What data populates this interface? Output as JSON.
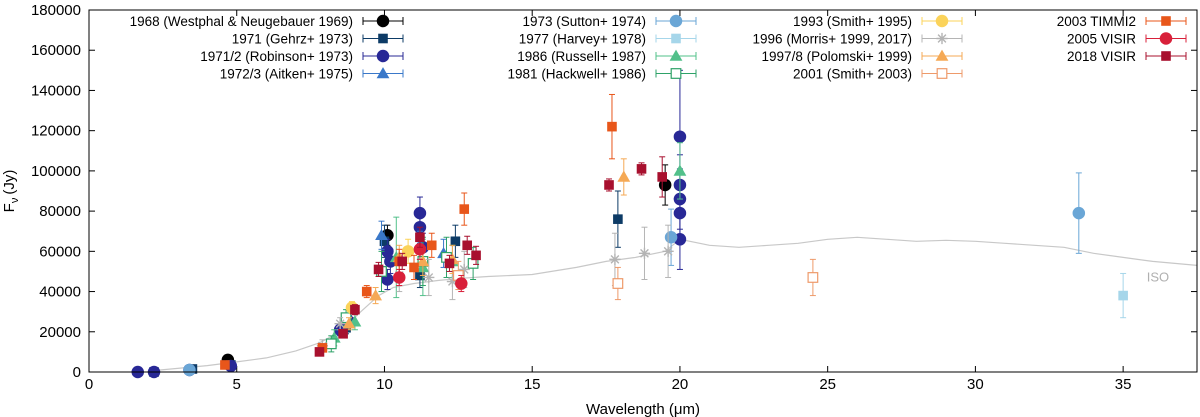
{
  "chart_data": {
    "type": "scatter",
    "xlabel": "Wavelength (μm)",
    "ylabel_main": "F",
    "ylabel_sub": "ν",
    "ylabel_unit": "(Jy)",
    "xlim": [
      0,
      37.5
    ],
    "ylim": [
      0,
      180000
    ],
    "xticks": [
      0,
      5,
      10,
      15,
      20,
      25,
      30,
      35
    ],
    "yticks": [
      0,
      20000,
      40000,
      60000,
      80000,
      100000,
      120000,
      140000,
      160000,
      180000
    ],
    "legend_placement": "top",
    "reference_curve": {
      "name": "ISO",
      "color": "#c8c8c8",
      "x": [
        2.4,
        3.0,
        4.0,
        5.0,
        6.0,
        7.0,
        7.8,
        8.5,
        9.2,
        9.8,
        10.3,
        11.0,
        11.8,
        12.5,
        13.5,
        15.0,
        16.5,
        17.5,
        18.5,
        19.5,
        20.0,
        21.0,
        22.0,
        23.0,
        24.0,
        25.0,
        26.0,
        27.0,
        28.0,
        29.0,
        30.0,
        31.0,
        32.0,
        33.0,
        34.0,
        35.0,
        36.0,
        37.5
      ],
      "y": [
        1000,
        1800,
        3200,
        5000,
        7000,
        10500,
        14500,
        20000,
        30000,
        38000,
        42000,
        44000,
        45500,
        46500,
        47500,
        48500,
        52000,
        55000,
        57000,
        60000,
        66000,
        63000,
        62000,
        63000,
        64000,
        66000,
        67000,
        66000,
        65000,
        65500,
        65000,
        64000,
        63000,
        62000,
        59000,
        57000,
        55000,
        53000
      ]
    },
    "series": [
      {
        "name": "1968 (Westphal & Neugebauer 1969)",
        "color": "#000000",
        "marker": "circle",
        "points": [
          [
            4.7,
            6000,
            1500
          ],
          [
            10.1,
            68000,
            5000
          ],
          [
            19.5,
            93000,
            10000
          ]
        ]
      },
      {
        "name": "1971 (Gehrz+ 1973)",
        "color": "#0d3b66",
        "marker": "square",
        "points": [
          [
            2.2,
            0,
            0
          ],
          [
            3.5,
            1500,
            500
          ],
          [
            4.8,
            3500,
            700
          ],
          [
            8.7,
            22000,
            3000
          ],
          [
            10.0,
            65000,
            8000
          ],
          [
            11.2,
            48000,
            6000
          ],
          [
            12.4,
            65000,
            8000
          ],
          [
            17.9,
            76000,
            14000
          ]
        ]
      },
      {
        "name": "1971/2 (Robinson+ 1973)",
        "color": "#282896",
        "marker": "circle",
        "points": [
          [
            1.65,
            0,
            0
          ],
          [
            2.2,
            0,
            0
          ],
          [
            3.4,
            1000,
            400
          ],
          [
            4.8,
            3000,
            600
          ],
          [
            8.5,
            21000,
            3000
          ],
          [
            8.8,
            25000,
            3000
          ],
          [
            10.1,
            60000,
            6000
          ],
          [
            10.2,
            55000,
            6000
          ],
          [
            10.1,
            46000,
            5000
          ],
          [
            11.2,
            79000,
            8000
          ],
          [
            11.2,
            72000,
            8000
          ],
          [
            11.3,
            62000,
            7000
          ],
          [
            20.0,
            117000,
            33000
          ],
          [
            20.0,
            93000,
            15000
          ],
          [
            20.0,
            86000,
            15000
          ],
          [
            20.0,
            79000,
            15000
          ],
          [
            20.0,
            66000,
            15000
          ]
        ]
      },
      {
        "name": "1972/3 (Aitken+ 1975)",
        "color": "#3a78c9",
        "marker": "triangle",
        "points": [
          [
            9.9,
            68000,
            7000
          ],
          [
            11.2,
            63000,
            7000
          ],
          [
            12.0,
            59000,
            7000
          ]
        ]
      },
      {
        "name": "1973 (Sutton+ 1974)",
        "color": "#6aa6d6",
        "marker": "circle",
        "points": [
          [
            3.4,
            1000,
            300
          ],
          [
            19.7,
            67000,
            14000
          ],
          [
            33.5,
            79000,
            20000
          ]
        ]
      },
      {
        "name": "1977 (Harvey+ 1978)",
        "color": "#a6d6ea",
        "marker": "square",
        "points": [
          [
            35.0,
            38000,
            11000
          ]
        ]
      },
      {
        "name": "1986 (Russell+ 1987)",
        "color": "#52c08a",
        "marker": "triangle",
        "points": [
          [
            8.3,
            17000,
            4000
          ],
          [
            9.0,
            25000,
            4000
          ],
          [
            10.4,
            57000,
            20000
          ],
          [
            11.3,
            52000,
            14000
          ],
          [
            12.3,
            55000,
            8000
          ],
          [
            20.0,
            100000,
            14000
          ]
        ]
      },
      {
        "name": "1981 (Hackwell+ 1986)",
        "color": "#2ea268",
        "marker": "open-square",
        "points": [
          [
            8.2,
            14000,
            4000
          ],
          [
            8.7,
            27000,
            4000
          ],
          [
            9.9,
            50000,
            10000
          ],
          [
            11.3,
            55000,
            12000
          ],
          [
            12.1,
            57000,
            10000
          ],
          [
            13.0,
            54000,
            8000
          ]
        ]
      },
      {
        "name": "1993 (Smith+ 1995)",
        "color": "#fbd35a",
        "marker": "circle",
        "points": [
          [
            8.9,
            32000,
            3000
          ],
          [
            10.8,
            60000,
            6000
          ]
        ]
      },
      {
        "name": "1996 (Morris+ 1999, 2017)",
        "color": "#b4b4b4",
        "marker": "star",
        "points": [
          [
            7.9,
            13000,
            3000
          ],
          [
            8.5,
            24000,
            3000
          ],
          [
            10.5,
            48000,
            8000
          ],
          [
            11.5,
            47000,
            9000
          ],
          [
            12.3,
            45000,
            9000
          ],
          [
            12.7,
            51000,
            9000
          ],
          [
            17.8,
            56000,
            13000
          ],
          [
            18.8,
            59000,
            13000
          ],
          [
            19.6,
            60000,
            13000
          ]
        ]
      },
      {
        "name": "1997/8 (Polomski+ 1999)",
        "color": "#f5a955",
        "marker": "triangle",
        "points": [
          [
            8.8,
            24000,
            3000
          ],
          [
            9.7,
            38000,
            4000
          ],
          [
            10.5,
            57000,
            6000
          ],
          [
            11.3,
            55000,
            7000
          ],
          [
            12.3,
            56000,
            7000
          ],
          [
            18.1,
            97000,
            9000
          ]
        ]
      },
      {
        "name": "2001 (Smith+ 2003)",
        "color": "#ee9a6a",
        "marker": "open-square",
        "points": [
          [
            12.5,
            48000,
            7000
          ],
          [
            17.9,
            44000,
            8000
          ],
          [
            24.5,
            47000,
            9000
          ]
        ]
      },
      {
        "name": "2003 TIMMI2",
        "color": "#e8561a",
        "marker": "square",
        "points": [
          [
            4.6,
            3500,
            700
          ],
          [
            7.9,
            12000,
            2000
          ],
          [
            9.4,
            40000,
            3000
          ],
          [
            10.5,
            55000,
            6000
          ],
          [
            11.0,
            52000,
            6000
          ],
          [
            11.6,
            63000,
            6000
          ],
          [
            12.7,
            81000,
            8000
          ],
          [
            17.7,
            122000,
            16000
          ]
        ]
      },
      {
        "name": "2005 VISIR",
        "color": "#d8203a",
        "marker": "circle",
        "points": [
          [
            10.5,
            47000,
            4000
          ],
          [
            11.2,
            61000,
            5000
          ],
          [
            12.6,
            44000,
            4000
          ]
        ]
      },
      {
        "name": "2018 VISIR",
        "color": "#a8102e",
        "marker": "square",
        "points": [
          [
            7.8,
            10000,
            1500
          ],
          [
            8.6,
            19000,
            2000
          ],
          [
            9.0,
            31000,
            2500
          ],
          [
            9.8,
            51000,
            3500
          ],
          [
            10.6,
            55000,
            4000
          ],
          [
            11.2,
            67000,
            5000
          ],
          [
            12.2,
            54000,
            4000
          ],
          [
            12.8,
            63000,
            4500
          ],
          [
            13.1,
            58000,
            4500
          ],
          [
            17.6,
            93000,
            3000
          ],
          [
            18.7,
            101000,
            3000
          ],
          [
            19.4,
            97000,
            10000
          ]
        ]
      }
    ]
  }
}
